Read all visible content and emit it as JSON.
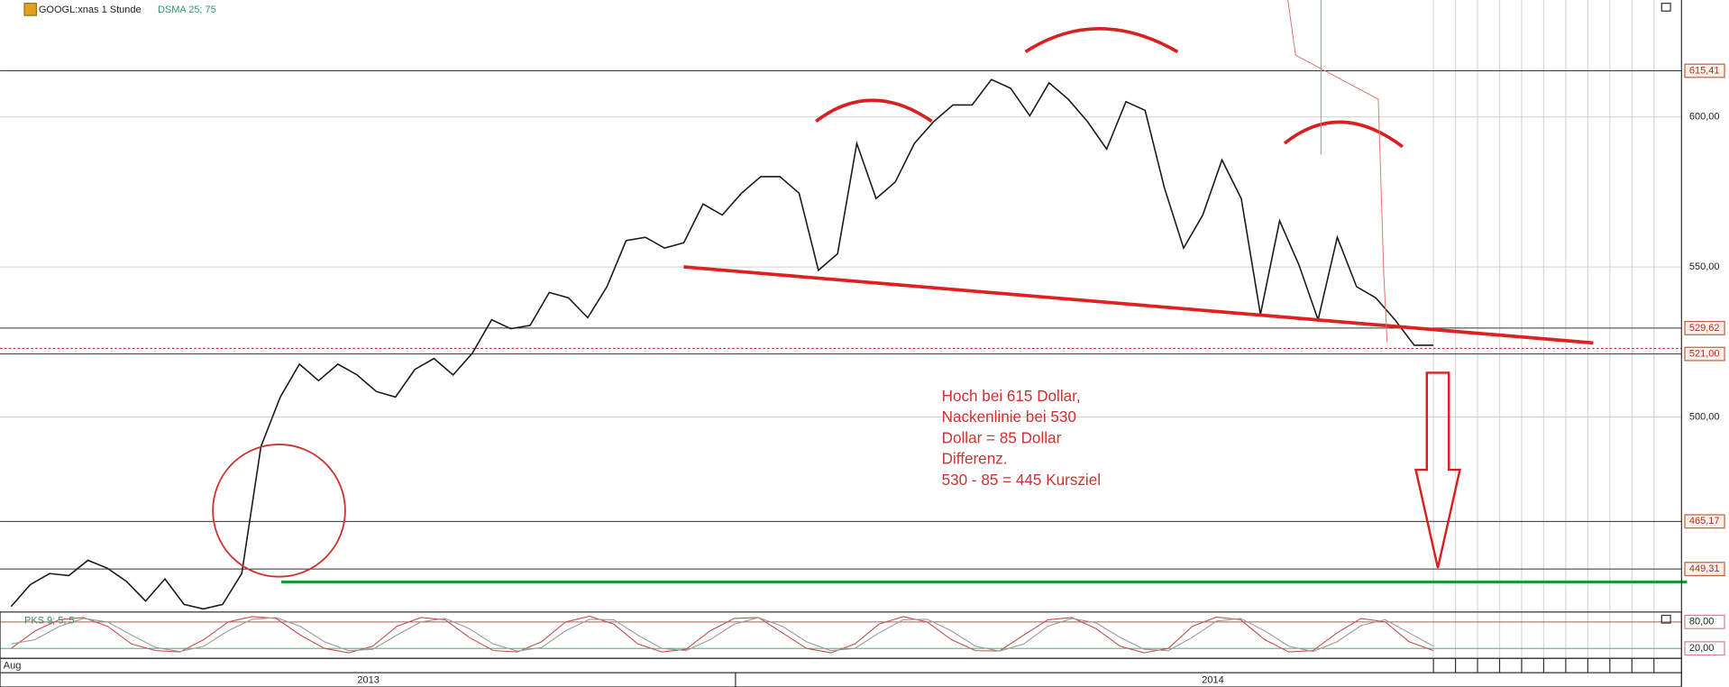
{
  "chart_data": [
    {
      "type": "line",
      "title": "GOOGL:xnas 1 Stunde",
      "indicator_label": "DSMA 25; 75",
      "categories": [
        null,
        null,
        null,
        null,
        null,
        null,
        null,
        null,
        null,
        null,
        null,
        null,
        null,
        null,
        null,
        null,
        null,
        null,
        null,
        null,
        null,
        null,
        null,
        null,
        null,
        null,
        null,
        null,
        null,
        null,
        null,
        null,
        null,
        null,
        null,
        null,
        null,
        null,
        null,
        null,
        null,
        null,
        null,
        null,
        null,
        null,
        null,
        null,
        null,
        null,
        null,
        null,
        null,
        null,
        null,
        null,
        null,
        null,
        null,
        null,
        null,
        null,
        null,
        null,
        null,
        null,
        null,
        null,
        null,
        null,
        null,
        null,
        null,
        null,
        null
      ],
      "series": [
        {
          "name": "GOOGL:xnas 1 Stunde",
          "color": "#1a1a1a",
          "values": [
            436.8,
            444.1,
            447.8,
            447.1,
            452.2,
            449.6,
            445.2,
            438.6,
            446.0,
            437.5,
            436.0,
            437.5,
            447.8,
            490.1,
            506.6,
            517.6,
            512.1,
            517.6,
            514.0,
            508.5,
            506.6,
            515.8,
            519.5,
            514.0,
            521.3,
            532.4,
            529.4,
            530.5,
            541.5,
            539.7,
            533.1,
            543.4,
            558.8,
            559.9,
            556.3,
            558.1,
            571.0,
            567.3,
            574.6,
            580.1,
            580.1,
            574.6,
            548.9,
            554.4,
            591.2,
            572.8,
            578.3,
            591.2,
            598.5,
            604.0,
            604.0,
            612.5,
            609.6,
            600.4,
            611.4,
            605.9,
            598.5,
            589.3,
            605.1,
            602.2,
            576.5,
            556.3,
            567.3,
            585.7,
            572.8,
            534.2,
            565.4,
            550.7,
            532.4,
            559.9,
            543.4,
            539.7,
            532.4,
            523.9,
            523.9
          ]
        }
      ],
      "ylim": [
        435.7,
        639
      ],
      "yticks": [
        {
          "value": 600,
          "label": "600,00"
        },
        {
          "value": 550,
          "label": "550,00"
        },
        {
          "value": 500,
          "label": "500,00"
        }
      ],
      "grid": true,
      "levels": [
        {
          "value": 615.41,
          "label": "615,41"
        },
        {
          "value": 529.62,
          "label": "529,62"
        },
        {
          "value": 521.0,
          "label": "521,00"
        },
        {
          "value": 465.17,
          "label": "465,17"
        },
        {
          "value": 449.31,
          "label": "449,31"
        }
      ],
      "target_level": 445,
      "target_color": "#1a9a2a",
      "annotation": [
        "Hoch bei 615 Dollar,",
        "Nackenlinie bei 530",
        "Dollar = 85 Dollar",
        "Differenz.",
        "530 - 85 = 445 Kursziel"
      ],
      "x_labels": [
        "Aug",
        "2013",
        "2014"
      ]
    },
    {
      "type": "line",
      "title": "PKS 9; 5; 5",
      "series": [
        {
          "color": "#c0504d",
          "values": [
            20,
            60,
            85,
            90,
            70,
            30,
            15,
            12,
            40,
            80,
            92,
            88,
            50,
            20,
            10,
            25,
            70,
            90,
            85,
            45,
            15,
            12,
            35,
            80,
            93,
            75,
            30,
            12,
            18,
            60,
            88,
            90,
            55,
            20,
            10,
            30,
            75,
            92,
            80,
            40,
            15,
            14,
            50,
            85,
            90,
            65,
            25,
            10,
            20,
            70,
            91,
            85,
            40,
            12,
            15,
            55,
            88,
            80,
            35,
            15
          ]
        },
        {
          "color": "#9a9a9a",
          "values": [
            30,
            40,
            70,
            88,
            80,
            50,
            22,
            13,
            25,
            60,
            86,
            90,
            70,
            35,
            15,
            18,
            50,
            80,
            88,
            65,
            30,
            14,
            22,
            60,
            86,
            85,
            50,
            20,
            15,
            40,
            75,
            90,
            70,
            35,
            15,
            20,
            55,
            85,
            86,
            60,
            25,
            14,
            30,
            70,
            88,
            78,
            45,
            18,
            15,
            45,
            82,
            88,
            60,
            25,
            13,
            35,
            72,
            85,
            55,
            25
          ]
        }
      ],
      "ylim": [
        0,
        100
      ],
      "yticks": [
        {
          "value": 80,
          "label": "80,00"
        },
        {
          "value": 20,
          "label": "20,00"
        }
      ]
    }
  ]
}
